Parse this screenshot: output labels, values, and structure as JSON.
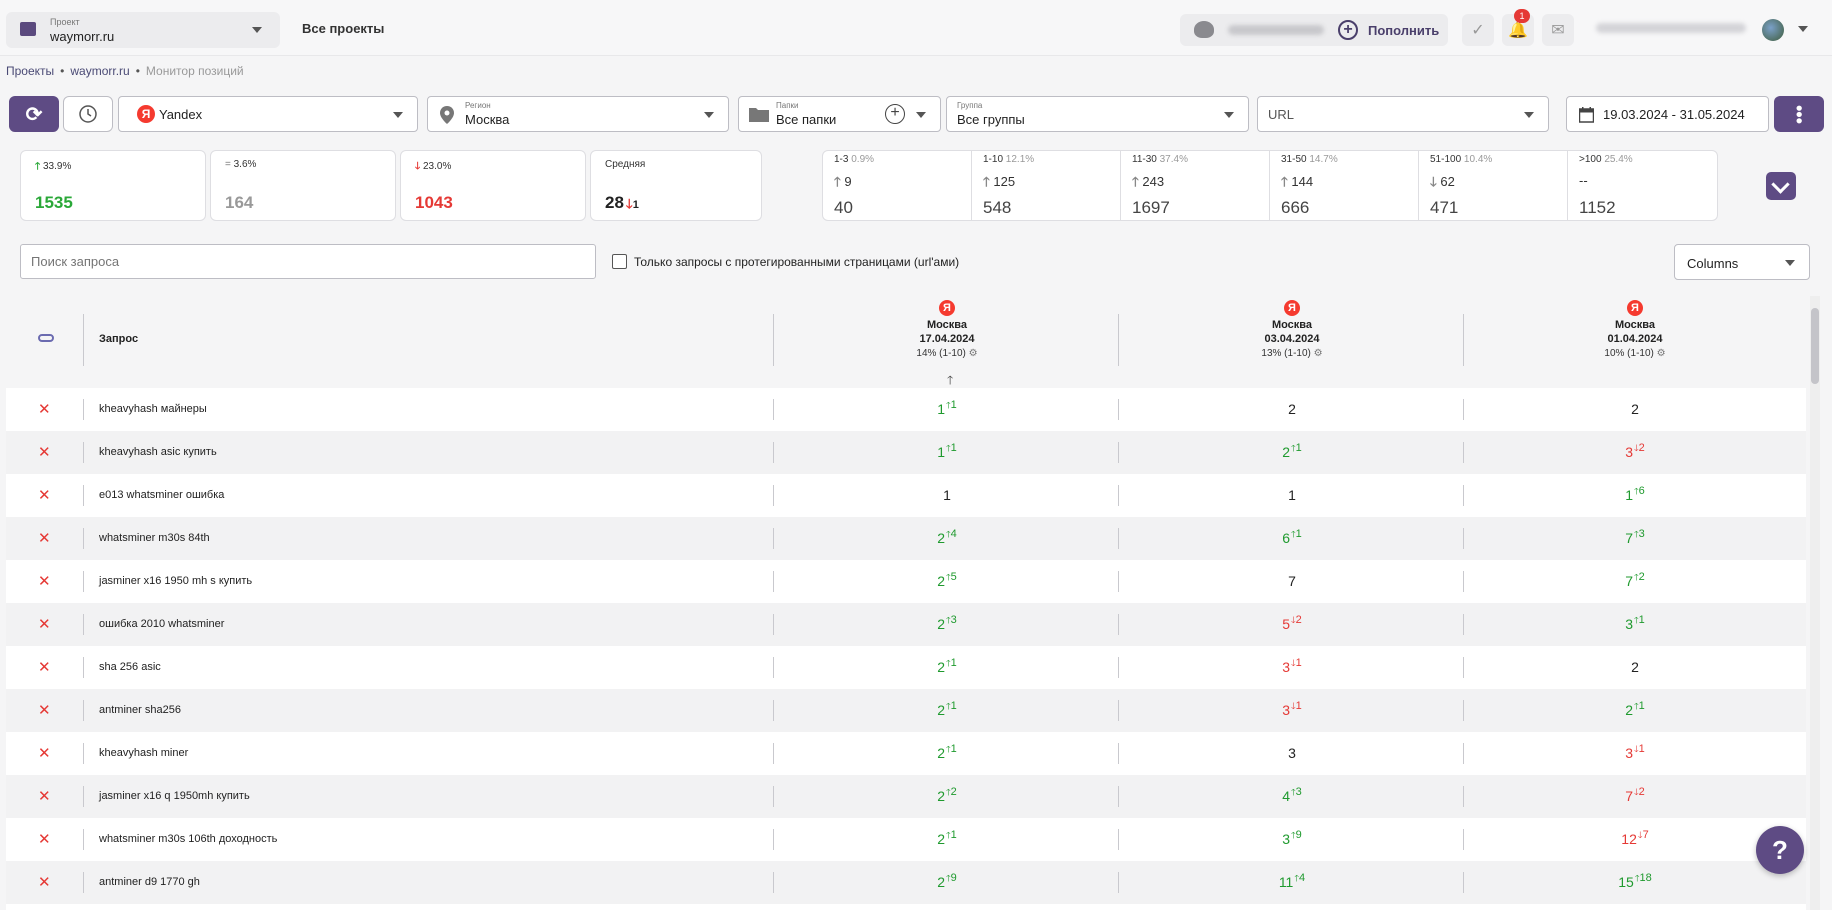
{
  "header": {
    "project_caption": "Проект",
    "project_value": "waymorr.ru",
    "all_projects": "Все проекты",
    "topup_label": "Пополнить",
    "notification_count": "1"
  },
  "breadcrumb": {
    "root": "Проекты",
    "project": "waymorr.ru",
    "current": "Монитор позиций"
  },
  "filters": {
    "search_engine": "Yandex",
    "region_caption": "Регион",
    "region_value": "Москва",
    "folders_caption": "Папки",
    "folders_value": "Все папки",
    "group_caption": "Группа",
    "group_value": "Все группы",
    "url_placeholder": "URL",
    "date_range": "19.03.2024 - 31.05.2024"
  },
  "summary": {
    "up": {
      "pct": "33.9%",
      "count": "1535"
    },
    "same": {
      "pct": "3.6%",
      "count": "164"
    },
    "down": {
      "pct": "23.0%",
      "count": "1043"
    },
    "average": {
      "label": "Средняя",
      "value": "28",
      "delta": "1"
    }
  },
  "ranges": [
    {
      "label": "1-3",
      "pct": "0.9%",
      "delta": "9",
      "dir": "up",
      "total": "40"
    },
    {
      "label": "1-10",
      "pct": "12.1%",
      "delta": "125",
      "dir": "up",
      "total": "548"
    },
    {
      "label": "11-30",
      "pct": "37.4%",
      "delta": "243",
      "dir": "up",
      "total": "1697"
    },
    {
      "label": "31-50",
      "pct": "14.7%",
      "delta": "144",
      "dir": "up",
      "total": "666"
    },
    {
      "label": "51-100",
      "pct": "10.4%",
      "delta": "62",
      "dir": "down",
      "total": "471"
    },
    {
      "label": ">100",
      "pct": "25.4%",
      "delta": "--",
      "dir": "none",
      "total": "1152"
    }
  ],
  "toolbar": {
    "search_placeholder": "Поиск запроса",
    "tagged_only_label": "Только запросы с протегированными страницами (url'ами)",
    "columns_label": "Columns"
  },
  "table": {
    "query_header": "Запрос",
    "columns": [
      {
        "city": "Москва",
        "date": "17.04.2024",
        "share": "14% (1-10)"
      },
      {
        "city": "Москва",
        "date": "03.04.2024",
        "share": "13% (1-10)"
      },
      {
        "city": "Москва",
        "date": "01.04.2024",
        "share": "10% (1-10)"
      }
    ],
    "rows": [
      {
        "query": "kheavyhash майнеры",
        "cells": [
          {
            "v": "1",
            "d": "1",
            "c": "g"
          },
          {
            "v": "2",
            "d": "",
            "c": "n"
          },
          {
            "v": "2",
            "d": "",
            "c": "n"
          }
        ]
      },
      {
        "query": "kheavyhash asic купить",
        "cells": [
          {
            "v": "1",
            "d": "1",
            "c": "g"
          },
          {
            "v": "2",
            "d": "1",
            "c": "g"
          },
          {
            "v": "3",
            "d": "2",
            "c": "r"
          }
        ]
      },
      {
        "query": "e013 whatsminer ошибка",
        "cells": [
          {
            "v": "1",
            "d": "",
            "c": "n"
          },
          {
            "v": "1",
            "d": "",
            "c": "n"
          },
          {
            "v": "1",
            "d": "6",
            "c": "g"
          }
        ]
      },
      {
        "query": "whatsminer m30s 84th",
        "cells": [
          {
            "v": "2",
            "d": "4",
            "c": "g"
          },
          {
            "v": "6",
            "d": "1",
            "c": "g"
          },
          {
            "v": "7",
            "d": "3",
            "c": "g"
          }
        ]
      },
      {
        "query": "jasminer x16 1950 mh s купить",
        "cells": [
          {
            "v": "2",
            "d": "5",
            "c": "g"
          },
          {
            "v": "7",
            "d": "",
            "c": "n"
          },
          {
            "v": "7",
            "d": "2",
            "c": "g"
          }
        ]
      },
      {
        "query": "ошибка 2010 whatsminer",
        "cells": [
          {
            "v": "2",
            "d": "3",
            "c": "g"
          },
          {
            "v": "5",
            "d": "2",
            "c": "r"
          },
          {
            "v": "3",
            "d": "1",
            "c": "g"
          }
        ]
      },
      {
        "query": "sha 256 asic",
        "cells": [
          {
            "v": "2",
            "d": "1",
            "c": "g"
          },
          {
            "v": "3",
            "d": "1",
            "c": "r"
          },
          {
            "v": "2",
            "d": "",
            "c": "n"
          }
        ]
      },
      {
        "query": "antminer sha256",
        "cells": [
          {
            "v": "2",
            "d": "1",
            "c": "g"
          },
          {
            "v": "3",
            "d": "1",
            "c": "r"
          },
          {
            "v": "2",
            "d": "1",
            "c": "g"
          }
        ]
      },
      {
        "query": "kheavyhash miner",
        "cells": [
          {
            "v": "2",
            "d": "1",
            "c": "g"
          },
          {
            "v": "3",
            "d": "",
            "c": "n"
          },
          {
            "v": "3",
            "d": "1",
            "c": "r"
          }
        ]
      },
      {
        "query": "jasminer x16 q 1950mh купить",
        "cells": [
          {
            "v": "2",
            "d": "2",
            "c": "g"
          },
          {
            "v": "4",
            "d": "3",
            "c": "g"
          },
          {
            "v": "7",
            "d": "2",
            "c": "r"
          }
        ]
      },
      {
        "query": "whatsminer m30s 106th доходность",
        "cells": [
          {
            "v": "2",
            "d": "1",
            "c": "g"
          },
          {
            "v": "3",
            "d": "9",
            "c": "g"
          },
          {
            "v": "12",
            "d": "7",
            "c": "r"
          }
        ]
      },
      {
        "query": "antminer d9 1770 gh",
        "cells": [
          {
            "v": "2",
            "d": "9",
            "c": "g"
          },
          {
            "v": "11",
            "d": "4",
            "c": "g"
          },
          {
            "v": "15",
            "d": "18",
            "c": "g"
          }
        ]
      }
    ]
  },
  "colors": {
    "accent": "#5e4b84",
    "up": "#1f9a2e",
    "down": "#e53935"
  }
}
